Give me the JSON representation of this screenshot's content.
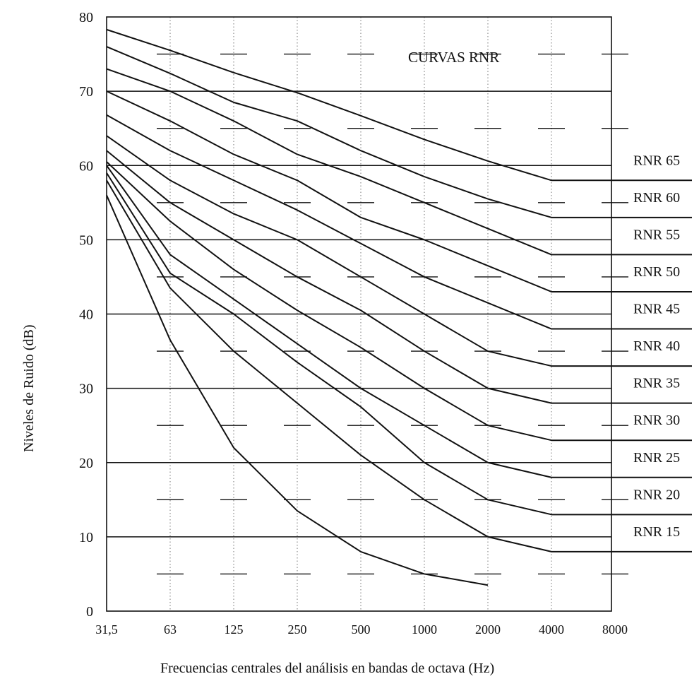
{
  "chart_data": {
    "type": "line",
    "title": "CURVAS RNR",
    "xlabel": "Frecuencias centrales del análisis en bandas de octava (Hz)",
    "ylabel": "Niveles de Ruido (dB)",
    "categories": [
      "31,5",
      "63",
      "125",
      "250",
      "500",
      "1000",
      "2000",
      "4000",
      "8000"
    ],
    "ylim": [
      0,
      80
    ],
    "yticks": [
      "0",
      "10",
      "20",
      "30",
      "40",
      "50",
      "60",
      "70",
      "80"
    ],
    "major_grid": [
      10,
      20,
      30,
      40,
      50,
      60,
      70
    ],
    "minor_dashes": [
      5,
      15,
      25,
      35,
      45,
      55,
      65,
      75
    ],
    "line_color": "#111111",
    "series": [
      {
        "name": "RNR 65",
        "x": [
          "31,5",
          "63",
          "125",
          "250",
          "500",
          "1000",
          "2000",
          "4000",
          "8000"
        ],
        "values": [
          78.3,
          75.5,
          72.5,
          69.8,
          66.7,
          63.5,
          60.6,
          58.0,
          58.0
        ]
      },
      {
        "name": "RNR 60",
        "x": [
          "31,5",
          "63",
          "125",
          "250",
          "500",
          "1000",
          "2000",
          "4000",
          "8000"
        ],
        "values": [
          76.0,
          72.4,
          68.5,
          66.0,
          62.0,
          58.5,
          55.5,
          53.0,
          53.0
        ]
      },
      {
        "name": "RNR 55",
        "x": [
          "31,5",
          "63",
          "125",
          "250",
          "500",
          "1000",
          "2000",
          "4000",
          "8000"
        ],
        "values": [
          73.0,
          70.0,
          66.0,
          61.5,
          58.5,
          55.0,
          51.5,
          48.0,
          48.0
        ]
      },
      {
        "name": "RNR 50",
        "x": [
          "31,5",
          "63",
          "125",
          "250",
          "500",
          "1000",
          "2000",
          "4000",
          "8000"
        ],
        "values": [
          70.0,
          66.0,
          61.5,
          58.0,
          53.0,
          50.0,
          46.5,
          43.0,
          43.0
        ]
      },
      {
        "name": "RNR 45",
        "x": [
          "31,5",
          "63",
          "125",
          "250",
          "500",
          "1000",
          "2000",
          "4000",
          "8000"
        ],
        "values": [
          66.8,
          62.0,
          58.0,
          54.0,
          49.5,
          45.0,
          41.5,
          38.0,
          38.0
        ]
      },
      {
        "name": "RNR 40",
        "x": [
          "31,5",
          "63",
          "125",
          "250",
          "500",
          "1000",
          "2000",
          "4000",
          "8000"
        ],
        "values": [
          64.0,
          58.0,
          53.5,
          50.0,
          45.0,
          40.0,
          35.0,
          33.0,
          33.0
        ]
      },
      {
        "name": "RNR 35",
        "x": [
          "31,5",
          "63",
          "125",
          "250",
          "500",
          "1000",
          "2000",
          "4000",
          "8000"
        ],
        "values": [
          62.0,
          55.0,
          50.0,
          45.0,
          40.5,
          35.0,
          30.0,
          28.0,
          28.0
        ]
      },
      {
        "name": "RNR 30",
        "x": [
          "31,5",
          "63",
          "125",
          "250",
          "500",
          "1000",
          "2000",
          "4000",
          "8000"
        ],
        "values": [
          60.5,
          52.5,
          46.0,
          40.5,
          35.5,
          30.0,
          25.0,
          23.0,
          23.0
        ]
      },
      {
        "name": "RNR 25",
        "x": [
          "31,5",
          "63",
          "125",
          "250",
          "500",
          "1000",
          "2000",
          "4000",
          "8000"
        ],
        "values": [
          60.0,
          48.0,
          42.0,
          36.0,
          30.0,
          25.0,
          20.0,
          18.0,
          18.0
        ]
      },
      {
        "name": "RNR 20",
        "x": [
          "31,5",
          "63",
          "125",
          "250",
          "500",
          "1000",
          "2000",
          "4000",
          "8000"
        ],
        "values": [
          59.0,
          45.5,
          40.0,
          33.5,
          27.5,
          20.0,
          15.0,
          13.0,
          13.0
        ]
      },
      {
        "name": "RNR 15",
        "x": [
          "31,5",
          "63",
          "125",
          "250",
          "500",
          "1000",
          "2000",
          "4000",
          "8000"
        ],
        "values": [
          58.0,
          43.5,
          35.0,
          28.0,
          21.0,
          15.0,
          10.0,
          8.0,
          8.0
        ]
      },
      {
        "name": "",
        "x": [
          "31,5",
          "63",
          "125",
          "250",
          "500",
          "1000",
          "2000"
        ],
        "values": [
          56.0,
          36.5,
          22.0,
          13.5,
          8.0,
          5.0,
          3.5
        ]
      }
    ]
  }
}
